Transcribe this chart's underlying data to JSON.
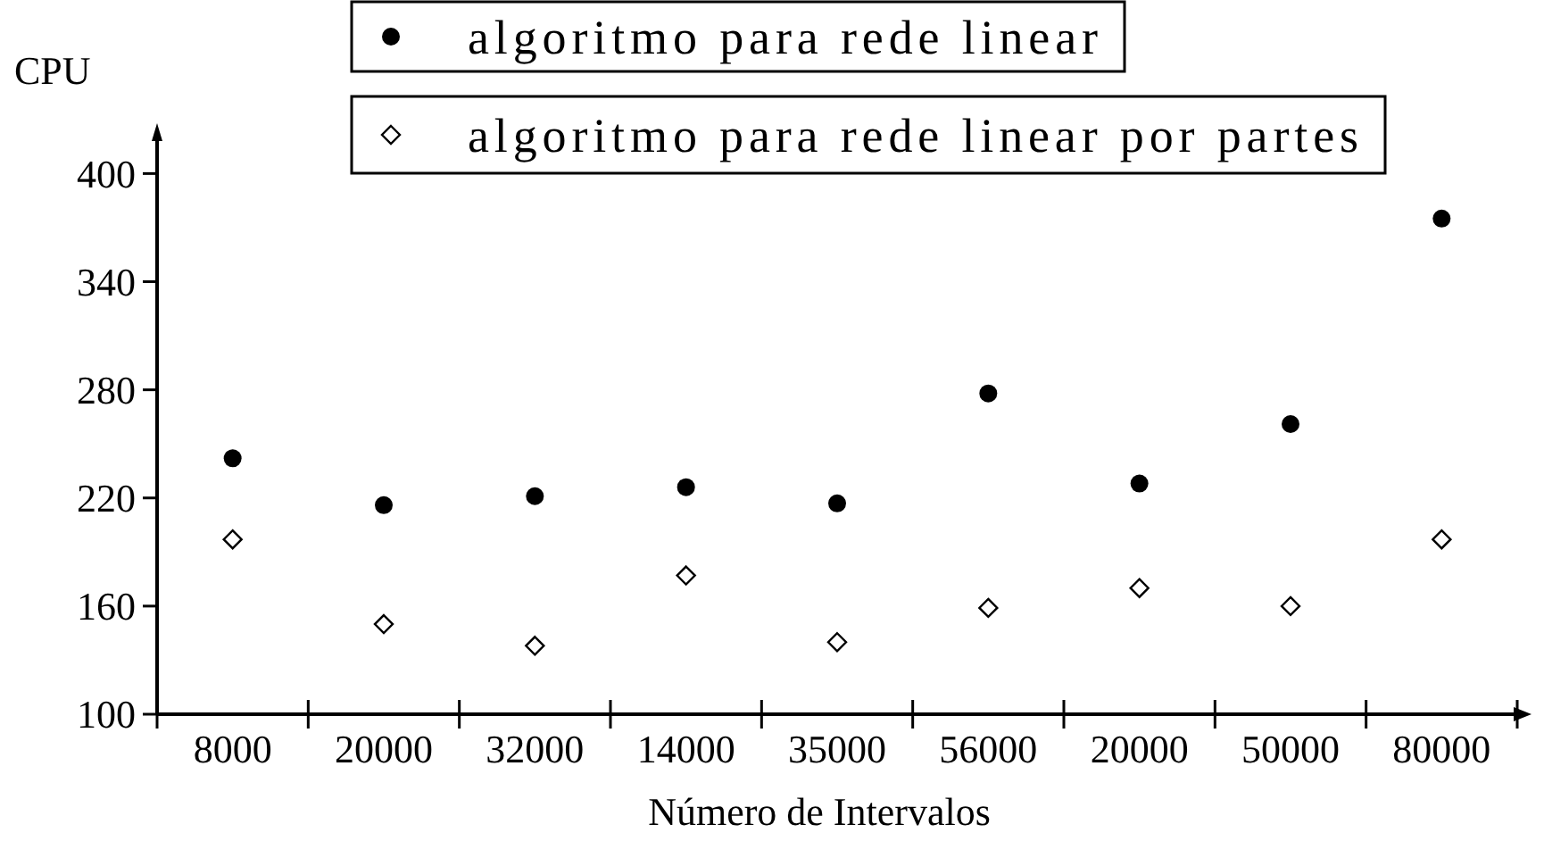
{
  "chart_data": {
    "type": "scatter",
    "ylabel": "CPU",
    "xlabel": "Número de Intervalos",
    "categories": [
      "8000",
      "20000",
      "32000",
      "14000",
      "35000",
      "56000",
      "20000",
      "50000",
      "80000"
    ],
    "series": [
      {
        "name": "algoritmo para rede linear",
        "color": "#000000",
        "marker": "circle",
        "values": [
          242,
          216,
          221,
          226,
          217,
          278,
          228,
          261,
          375
        ]
      },
      {
        "name": "algoritmo para rede linear por partes",
        "color": "#000000",
        "marker": "diamond",
        "values": [
          197,
          150,
          138,
          177,
          140,
          159,
          170,
          160,
          197
        ]
      }
    ],
    "ylim": [
      100,
      420
    ],
    "yticks": [
      100,
      160,
      220,
      280,
      340,
      400
    ],
    "legend": "top",
    "grid": false
  }
}
